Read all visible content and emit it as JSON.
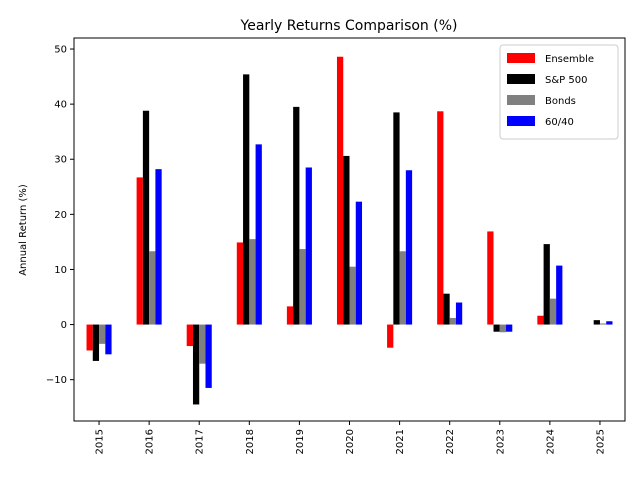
{
  "chart_data": {
    "type": "bar",
    "title": "Yearly Returns Comparison (%)",
    "xlabel": "",
    "ylabel": "Annual Return (%)",
    "categories": [
      "2015",
      "2016",
      "2017",
      "2018",
      "2019",
      "2020",
      "2021",
      "2022",
      "2023",
      "2024",
      "2025"
    ],
    "ylim": [
      -17.5,
      52
    ],
    "yticks": [
      -10,
      0,
      10,
      20,
      30,
      40,
      50
    ],
    "ytick_labels": [
      "−10",
      "0",
      "10",
      "20",
      "30",
      "40",
      "50"
    ],
    "grid": false,
    "legend_position": "top-right",
    "series": [
      {
        "name": "Ensemble",
        "color": "#ff0000",
        "values": [
          -4.7,
          26.7,
          -3.9,
          14.9,
          3.3,
          48.6,
          -4.2,
          38.7,
          16.9,
          1.6,
          0.0
        ]
      },
      {
        "name": "S&P 500",
        "color": "#000000",
        "values": [
          -6.6,
          38.8,
          -14.5,
          45.4,
          39.5,
          30.6,
          38.5,
          5.6,
          -1.3,
          14.6,
          0.8
        ]
      },
      {
        "name": "Bonds",
        "color": "#808080",
        "values": [
          -3.5,
          13.3,
          -7.1,
          15.5,
          13.7,
          10.5,
          13.3,
          1.2,
          -1.4,
          4.7,
          0.2
        ]
      },
      {
        "name": "60/40",
        "color": "#0000ff",
        "values": [
          -5.4,
          28.2,
          -11.5,
          32.7,
          28.5,
          22.3,
          28.0,
          4.0,
          -1.3,
          10.7,
          0.6
        ]
      }
    ]
  }
}
